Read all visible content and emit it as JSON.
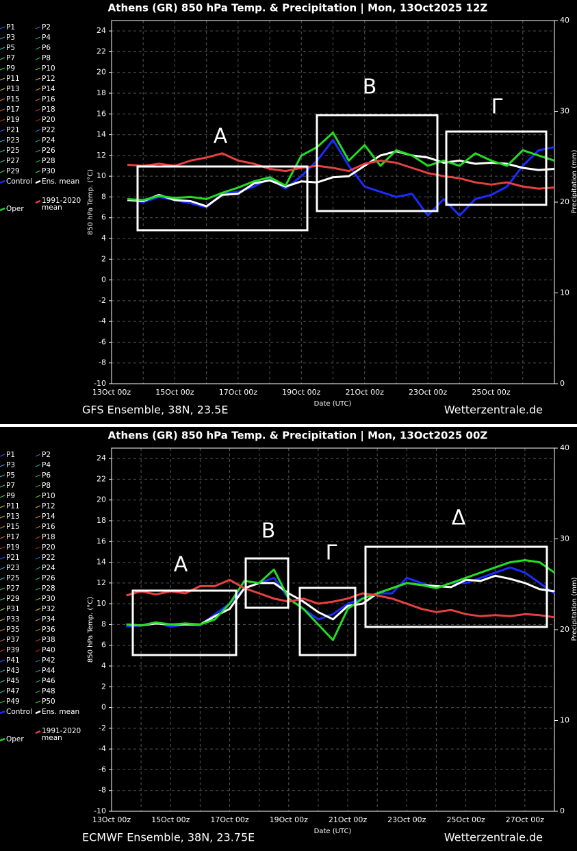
{
  "chart_data": [
    {
      "type": "line",
      "title": "Athens  (GR)  850 hPa Temp. & Precipitation | Mon, 13Oct2025 12Z",
      "subtitle": "GFS Ensemble, 38N, 23.5E",
      "credit": "Wetterzentrale.de",
      "xlabel": "Date (UTC)",
      "ylabel": "850 hPa Temp. (°C)",
      "y2label": "Precipitation (mm)",
      "categories": [
        "13Oct 00z",
        null,
        null,
        null,
        "15Oct 00z",
        null,
        null,
        null,
        "17Oct 00z",
        null,
        null,
        null,
        "19Oct 00z",
        null,
        null,
        null,
        "21Oct 00z",
        null,
        null,
        null,
        "23Oct 00z",
        null,
        null,
        null,
        "25Oct 00z",
        null,
        null,
        null,
        null
      ],
      "ylim": [
        -10,
        25
      ],
      "yticks": [
        -10,
        -8,
        -6,
        -4,
        -2,
        0,
        2,
        4,
        6,
        8,
        10,
        12,
        14,
        16,
        18,
        20,
        22,
        24
      ],
      "y2lim": [
        0,
        40
      ],
      "y2ticks": [
        0,
        10,
        20,
        30,
        40
      ],
      "grid": true,
      "annotations": [
        "A",
        "B",
        "Γ"
      ],
      "member_legend": [
        {
          "name": "P1",
          "color": "#3050ff"
        },
        {
          "name": "P2",
          "color": "#2a6fd0"
        },
        {
          "name": "P3",
          "color": "#30a0d0"
        },
        {
          "name": "P4",
          "color": "#2aa0a0"
        },
        {
          "name": "P5",
          "color": "#20c0c0"
        },
        {
          "name": "P6",
          "color": "#20b080"
        },
        {
          "name": "P7",
          "color": "#30c090"
        },
        {
          "name": "P8",
          "color": "#30b040"
        },
        {
          "name": "P9",
          "color": "#40d040"
        },
        {
          "name": "P10",
          "color": "#60d020"
        },
        {
          "name": "P11",
          "color": "#b0c030"
        },
        {
          "name": "P12",
          "color": "#d0b040"
        },
        {
          "name": "P13",
          "color": "#d0b020"
        },
        {
          "name": "P14",
          "color": "#e09020"
        },
        {
          "name": "P15",
          "color": "#d08030"
        },
        {
          "name": "P16",
          "color": "#c07030"
        },
        {
          "name": "P17",
          "color": "#d06030"
        },
        {
          "name": "P18",
          "color": "#c04020"
        },
        {
          "name": "P19",
          "color": "#c03020"
        },
        {
          "name": "P20",
          "color": "#b02020"
        },
        {
          "name": "P21",
          "color": "#3050ff"
        },
        {
          "name": "P22",
          "color": "#2a6fd0"
        },
        {
          "name": "P23",
          "color": "#30a0d0"
        },
        {
          "name": "P24",
          "color": "#2aa0a0"
        },
        {
          "name": "P25",
          "color": "#20c0c0"
        },
        {
          "name": "P26",
          "color": "#20b080"
        },
        {
          "name": "P27",
          "color": "#30c090"
        },
        {
          "name": "P28",
          "color": "#30b040"
        },
        {
          "name": "P29",
          "color": "#40d040"
        },
        {
          "name": "P30",
          "color": "#60d020"
        }
      ],
      "series": [
        {
          "name": "Control",
          "color": "#1a2cff",
          "values": [
            null,
            7.8,
            7.5,
            8.0,
            7.7,
            7.4,
            7.0,
            8.3,
            8.5,
            9.0,
            9.8,
            8.8,
            10.0,
            11.5,
            13.5,
            11.0,
            9.0,
            8.5,
            8.0,
            8.3,
            6.2,
            7.8,
            6.2,
            7.8,
            8.2,
            9.0,
            11.0,
            12.5,
            12.8
          ]
        },
        {
          "name": "Ens. mean",
          "color": "#ffffff",
          "values": [
            null,
            7.7,
            7.6,
            8.2,
            7.7,
            7.6,
            7.1,
            8.2,
            8.3,
            9.3,
            9.6,
            9.0,
            9.5,
            9.4,
            9.9,
            10.0,
            11.0,
            12.0,
            12.4,
            12.0,
            11.8,
            11.3,
            11.5,
            11.2,
            11.3,
            11.2,
            10.8,
            10.6,
            10.7
          ]
        },
        {
          "name": "Oper",
          "color": "#22dd22",
          "values": [
            null,
            7.8,
            7.7,
            8.1,
            7.9,
            8.0,
            7.8,
            8.4,
            8.9,
            9.5,
            9.9,
            9.1,
            12.0,
            12.8,
            14.2,
            11.5,
            13.0,
            11.0,
            12.5,
            12.0,
            11.0,
            11.5,
            11.0,
            12.2,
            11.5,
            11.0,
            12.5,
            12.0,
            11.5
          ]
        },
        {
          "name": "1991-2020 mean",
          "color": "#e84040",
          "values": [
            null,
            11.1,
            11.0,
            11.2,
            11.0,
            11.5,
            11.8,
            12.2,
            11.5,
            11.2,
            10.7,
            10.5,
            10.8,
            11.0,
            10.8,
            10.5,
            11.2,
            11.5,
            11.3,
            10.8,
            10.3,
            10.0,
            9.8,
            9.4,
            9.2,
            9.4,
            9.0,
            8.8,
            8.9
          ]
        }
      ]
    },
    {
      "type": "line",
      "title": "Athens  (GR)  850 hPa Temp. & Precipitation | Mon, 13Oct2025 00Z",
      "subtitle": "ECMWF Ensemble, 38N, 23.75E",
      "credit": "Wetterzentrale.de",
      "xlabel": "Date (UTC)",
      "ylabel": "850 hPa Temp. (°C)",
      "y2label": "Precipitation (mm)",
      "categories": [
        "13Oct 00z",
        null,
        null,
        null,
        "15Oct 00z",
        null,
        null,
        null,
        "17Oct 00z",
        null,
        null,
        null,
        "19Oct 00z",
        null,
        null,
        null,
        "21Oct 00z",
        null,
        null,
        null,
        "23Oct 00z",
        null,
        null,
        null,
        "25Oct 00z",
        null,
        null,
        null,
        "27Oct 00z",
        null,
        null
      ],
      "ylim": [
        -10,
        25
      ],
      "yticks": [
        -10,
        -8,
        -6,
        -4,
        -2,
        0,
        2,
        4,
        6,
        8,
        10,
        12,
        14,
        16,
        18,
        20,
        22,
        24
      ],
      "y2lim": [
        0,
        40
      ],
      "y2ticks": [
        0,
        10,
        20,
        30,
        40
      ],
      "grid": true,
      "annotations": [
        "A",
        "B",
        "Γ",
        "Δ"
      ],
      "member_legend": [
        {
          "name": "P1",
          "color": "#3050ff"
        },
        {
          "name": "P2",
          "color": "#2a6fd0"
        },
        {
          "name": "P3",
          "color": "#30a0d0"
        },
        {
          "name": "P4",
          "color": "#2aa0a0"
        },
        {
          "name": "P5",
          "color": "#20c0c0"
        },
        {
          "name": "P6",
          "color": "#20b080"
        },
        {
          "name": "P7",
          "color": "#30c090"
        },
        {
          "name": "P8",
          "color": "#30b040"
        },
        {
          "name": "P9",
          "color": "#40d040"
        },
        {
          "name": "P10",
          "color": "#60d020"
        },
        {
          "name": "P11",
          "color": "#b0c030"
        },
        {
          "name": "P12",
          "color": "#d0b040"
        },
        {
          "name": "P13",
          "color": "#d0b020"
        },
        {
          "name": "P14",
          "color": "#e09020"
        },
        {
          "name": "P15",
          "color": "#d08030"
        },
        {
          "name": "P16",
          "color": "#c07030"
        },
        {
          "name": "P17",
          "color": "#d06030"
        },
        {
          "name": "P18",
          "color": "#c04020"
        },
        {
          "name": "P19",
          "color": "#c03020"
        },
        {
          "name": "P20",
          "color": "#b02020"
        },
        {
          "name": "P21",
          "color": "#3050ff"
        },
        {
          "name": "P22",
          "color": "#2a6fd0"
        },
        {
          "name": "P23",
          "color": "#30a0d0"
        },
        {
          "name": "P24",
          "color": "#2aa0a0"
        },
        {
          "name": "P25",
          "color": "#20c0c0"
        },
        {
          "name": "P26",
          "color": "#20b080"
        },
        {
          "name": "P27",
          "color": "#30c090"
        },
        {
          "name": "P28",
          "color": "#30b040"
        },
        {
          "name": "P29",
          "color": "#40d040"
        },
        {
          "name": "P30",
          "color": "#60d020"
        },
        {
          "name": "P31",
          "color": "#b0c030"
        },
        {
          "name": "P32",
          "color": "#d0b040"
        },
        {
          "name": "P33",
          "color": "#d0b020"
        },
        {
          "name": "P34",
          "color": "#e09020"
        },
        {
          "name": "P35",
          "color": "#d08030"
        },
        {
          "name": "P36",
          "color": "#c07030"
        },
        {
          "name": "P37",
          "color": "#d06030"
        },
        {
          "name": "P38",
          "color": "#c04020"
        },
        {
          "name": "P39",
          "color": "#c03020"
        },
        {
          "name": "P40",
          "color": "#b02020"
        },
        {
          "name": "P41",
          "color": "#3050ff"
        },
        {
          "name": "P42",
          "color": "#2a6fd0"
        },
        {
          "name": "P43",
          "color": "#30a0d0"
        },
        {
          "name": "P44",
          "color": "#2aa0a0"
        },
        {
          "name": "P45",
          "color": "#20c0c0"
        },
        {
          "name": "P46",
          "color": "#20b080"
        },
        {
          "name": "P47",
          "color": "#30c090"
        },
        {
          "name": "P48",
          "color": "#30b040"
        },
        {
          "name": "P49",
          "color": "#40d040"
        },
        {
          "name": "P50",
          "color": "#60d020"
        }
      ],
      "series": [
        {
          "name": "Control",
          "color": "#1a2cff",
          "values": [
            null,
            7.8,
            7.9,
            8.2,
            7.8,
            8.0,
            7.9,
            9.0,
            10.0,
            11.5,
            12.0,
            12.5,
            10.5,
            9.5,
            8.5,
            9.0,
            10.0,
            10.5,
            11.0,
            11.0,
            12.5,
            12.0,
            11.5,
            12.0,
            12.0,
            12.5,
            13.0,
            13.5,
            13.0,
            12.0,
            11.0
          ]
        },
        {
          "name": "Ens. mean",
          "color": "#ffffff",
          "values": [
            null,
            8.0,
            7.9,
            8.1,
            8.0,
            8.0,
            8.0,
            8.8,
            9.5,
            11.5,
            12.0,
            12.0,
            11.0,
            10.2,
            9.2,
            8.5,
            9.8,
            10.0,
            11.0,
            11.5,
            12.0,
            11.8,
            11.7,
            11.6,
            12.3,
            12.2,
            12.7,
            12.4,
            12.0,
            11.4,
            11.2
          ]
        },
        {
          "name": "Oper",
          "color": "#22dd22",
          "values": [
            null,
            8.0,
            7.9,
            8.2,
            8.0,
            8.1,
            8.0,
            8.5,
            10.0,
            12.2,
            12.0,
            13.3,
            10.5,
            9.5,
            8.0,
            6.5,
            9.5,
            10.5,
            11.0,
            11.5,
            12.0,
            11.8,
            11.5,
            12.0,
            12.5,
            13.0,
            13.5,
            14.0,
            14.2,
            14.0,
            13.0
          ]
        },
        {
          "name": "1991-2020 mean",
          "color": "#e84040",
          "values": [
            null,
            10.8,
            11.2,
            10.9,
            11.2,
            11.0,
            11.7,
            11.7,
            12.3,
            11.5,
            11.0,
            10.5,
            10.2,
            10.5,
            10.0,
            10.2,
            10.5,
            11.0,
            10.8,
            10.5,
            10.0,
            9.5,
            9.2,
            9.4,
            9.0,
            8.8,
            8.9,
            8.8,
            9.0,
            8.9,
            8.7
          ]
        }
      ]
    }
  ]
}
